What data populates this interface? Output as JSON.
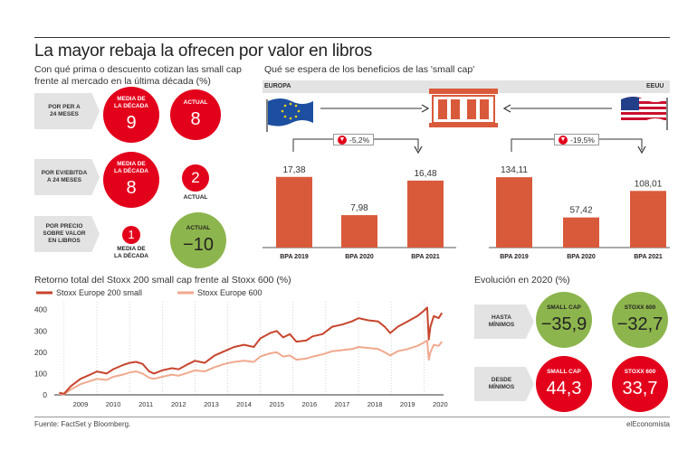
{
  "title": "La mayor rebaja la ofrecen por valor en libros",
  "left_panel": {
    "subtitle_line1": "Con qué prima o descuento cotizan las small cap",
    "subtitle_line2": "frente al mercado en la última década (%)",
    "rows": [
      {
        "tag_line1": "POR PER A",
        "tag_line2": "24 MESES",
        "tag_line3": "",
        "avg_label_line1": "MEDIA DE",
        "avg_label_line2": "LA DÉCADA",
        "avg_value": "9",
        "cur_label": "ACTUAL",
        "cur_value": "8"
      },
      {
        "tag_line1": "POR EV/EBITDA",
        "tag_line2": "A 24 MESES",
        "tag_line3": "",
        "avg_label_line1": "MEDIA DE",
        "avg_label_line2": "LA DÉCADA",
        "avg_value": "8",
        "cur_label": "ACTUAL",
        "cur_value": "2"
      },
      {
        "tag_line1": "POR PRECIO",
        "tag_line2": "SOBRE VALOR",
        "tag_line3": "EN LIBROS",
        "avg_label_line1": "MEDIA DE",
        "avg_label_line2": "LA DÉCADA",
        "avg_value": "1",
        "cur_label": "ACTUAL",
        "cur_value": "−10"
      }
    ]
  },
  "right_panel": {
    "subtitle": "Qué se espera de los beneficios de las 'small cap'",
    "europa_label": "EUROPA",
    "eeuu_label": "EEUU",
    "europa_change": "-5,2%",
    "eeuu_change": "-19,5%"
  },
  "line_panel": {
    "subtitle": "Retorno total del Stoxx 200 small cap frente al Stoxx 600 (%)"
  },
  "evo_panel": {
    "subtitle": "Evolución en 2020 (%)",
    "row1_tag_line1": "HASTA",
    "row1_tag_line2": "MÍNIMOS",
    "row2_tag_line1": "DESDE",
    "row2_tag_line2": "MÍNIMOS",
    "small_cap_label": "SMALL CAP",
    "stoxx_label": "STOXX 600",
    "row1_small": "−35,9",
    "row1_stoxx": "−32,7",
    "row2_small": "44,3",
    "row2_stoxx": "33,7"
  },
  "footer": {
    "source": "Fuente: FactSet y Bloomberg.",
    "brand": "elEconomista"
  },
  "colors": {
    "red": "#e3001b",
    "green": "#8db54d",
    "bar": "#d95a3b",
    "line_small": "#c7452d",
    "line_stoxx": "#f0a98e"
  },
  "chart_data": [
    {
      "type": "bar",
      "region": "EUROPA",
      "categories": [
        "BPA 2019",
        "BPA 2020",
        "BPA 2021"
      ],
      "values": [
        17.38,
        7.98,
        16.48
      ],
      "value_labels": [
        "17,38",
        "7,98",
        "16,48"
      ],
      "ylim": [
        0,
        20
      ]
    },
    {
      "type": "bar",
      "region": "EEUU",
      "categories": [
        "BPA 2019",
        "BPA 2020",
        "BPA 2021"
      ],
      "values": [
        134.11,
        57.42,
        108.01
      ],
      "value_labels": [
        "134,11",
        "57,42",
        "108,01"
      ],
      "ylim": [
        0,
        155
      ]
    },
    {
      "type": "line",
      "ylim": [
        0,
        420
      ],
      "yticks": [
        0,
        100,
        200,
        300,
        400
      ],
      "xticks": [
        "2009",
        "2010",
        "2011",
        "2012",
        "2013",
        "2014",
        "2015",
        "2016",
        "2017",
        "2018",
        "2019",
        "2020"
      ],
      "xrange": [
        2008.7,
        2020.6
      ],
      "grid": "vertical dotted",
      "legend": "top-left",
      "series": [
        {
          "name": "Stoxx Europe 200 small",
          "x": [
            2008.85,
            2009.0,
            2009.2,
            2009.5,
            2009.8,
            2010.0,
            2010.3,
            2010.5,
            2010.8,
            2011.0,
            2011.2,
            2011.4,
            2011.6,
            2011.75,
            2012.0,
            2012.3,
            2012.5,
            2012.8,
            2013.0,
            2013.3,
            2013.6,
            2013.9,
            2014.2,
            2014.5,
            2014.8,
            2015.0,
            2015.3,
            2015.5,
            2015.7,
            2015.9,
            2016.1,
            2016.4,
            2016.6,
            2016.9,
            2017.2,
            2017.5,
            2017.8,
            2018.0,
            2018.3,
            2018.6,
            2018.8,
            2018.97,
            2019.2,
            2019.5,
            2019.8,
            2020.0,
            2020.1,
            2020.15,
            2020.2,
            2020.3,
            2020.45,
            2020.55
          ],
          "y": [
            10,
            5,
            40,
            75,
            95,
            110,
            100,
            120,
            140,
            150,
            155,
            145,
            110,
            100,
            115,
            125,
            120,
            145,
            160,
            150,
            185,
            205,
            225,
            235,
            225,
            265,
            290,
            300,
            270,
            285,
            250,
            255,
            275,
            285,
            320,
            330,
            345,
            360,
            350,
            345,
            320,
            290,
            320,
            345,
            370,
            395,
            410,
            260,
            320,
            370,
            360,
            385
          ]
        },
        {
          "name": "Stoxx Europe 600",
          "x": [
            2008.85,
            2009.0,
            2009.2,
            2009.5,
            2009.8,
            2010.0,
            2010.3,
            2010.5,
            2010.8,
            2011.0,
            2011.2,
            2011.4,
            2011.6,
            2011.75,
            2012.0,
            2012.3,
            2012.5,
            2012.8,
            2013.0,
            2013.3,
            2013.6,
            2013.9,
            2014.2,
            2014.5,
            2014.8,
            2015.0,
            2015.3,
            2015.5,
            2015.7,
            2015.9,
            2016.1,
            2016.4,
            2016.6,
            2016.9,
            2017.2,
            2017.5,
            2017.8,
            2018.0,
            2018.3,
            2018.6,
            2018.8,
            2018.97,
            2019.2,
            2019.5,
            2019.8,
            2020.0,
            2020.1,
            2020.15,
            2020.2,
            2020.3,
            2020.45,
            2020.55
          ],
          "y": [
            5,
            2,
            25,
            50,
            65,
            75,
            70,
            85,
            95,
            105,
            110,
            100,
            80,
            75,
            85,
            95,
            90,
            105,
            115,
            110,
            130,
            145,
            155,
            160,
            155,
            180,
            195,
            200,
            180,
            185,
            165,
            170,
            180,
            190,
            205,
            210,
            215,
            225,
            220,
            215,
            200,
            185,
            205,
            215,
            230,
            245,
            255,
            165,
            200,
            235,
            230,
            250
          ]
        }
      ]
    }
  ]
}
